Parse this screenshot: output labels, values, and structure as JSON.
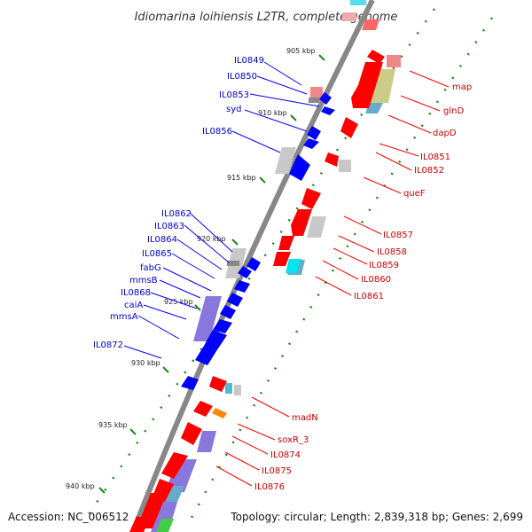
{
  "title": "Idiomarina loihiensis L2TR, complete genome",
  "footer": {
    "accession": "Accession: NC_006512",
    "summary": "Topology: circular; Length: 2,839,318 bp; Genes: 2,699"
  },
  "colors": {
    "forward": "#ff0000",
    "reverse": "#0000ff",
    "gene_label_forward": "#cc0000",
    "gene_label_reverse": "#0000cc",
    "backbone": "#888888",
    "tick": "#1a8a1a",
    "cog_gray": "#c8c8c8",
    "cog_purple": "#8877dd",
    "cog_pink": "#ee8888",
    "cog_olive": "#cccc88",
    "cog_teal": "#66aacc",
    "cog_orange": "#ff8800",
    "cog_green": "#44cc44",
    "cog_cyan": "#55ddee"
  },
  "scale_labels": [
    "905 kbp",
    "910 kbp",
    "915 kbp",
    "920 kbp",
    "925 kbp",
    "930 kbp",
    "935 kbp",
    "940 kbp"
  ],
  "genes_reverse": [
    "IL0849",
    "IL0850",
    "IL0853",
    "syd",
    "IL0856",
    "IL0862",
    "IL0863",
    "IL0864",
    "IL0865",
    "fabG",
    "mmsB",
    "IL0868",
    "caiA",
    "mmsA",
    "IL0872"
  ],
  "genes_forward": [
    "map",
    "glnD",
    "dapD",
    "IL0851",
    "IL0852",
    "queF",
    "IL0857",
    "IL0858",
    "IL0859",
    "IL0860",
    "IL0861",
    "madN",
    "soxR_3",
    "IL0874",
    "IL0875",
    "IL0876"
  ]
}
